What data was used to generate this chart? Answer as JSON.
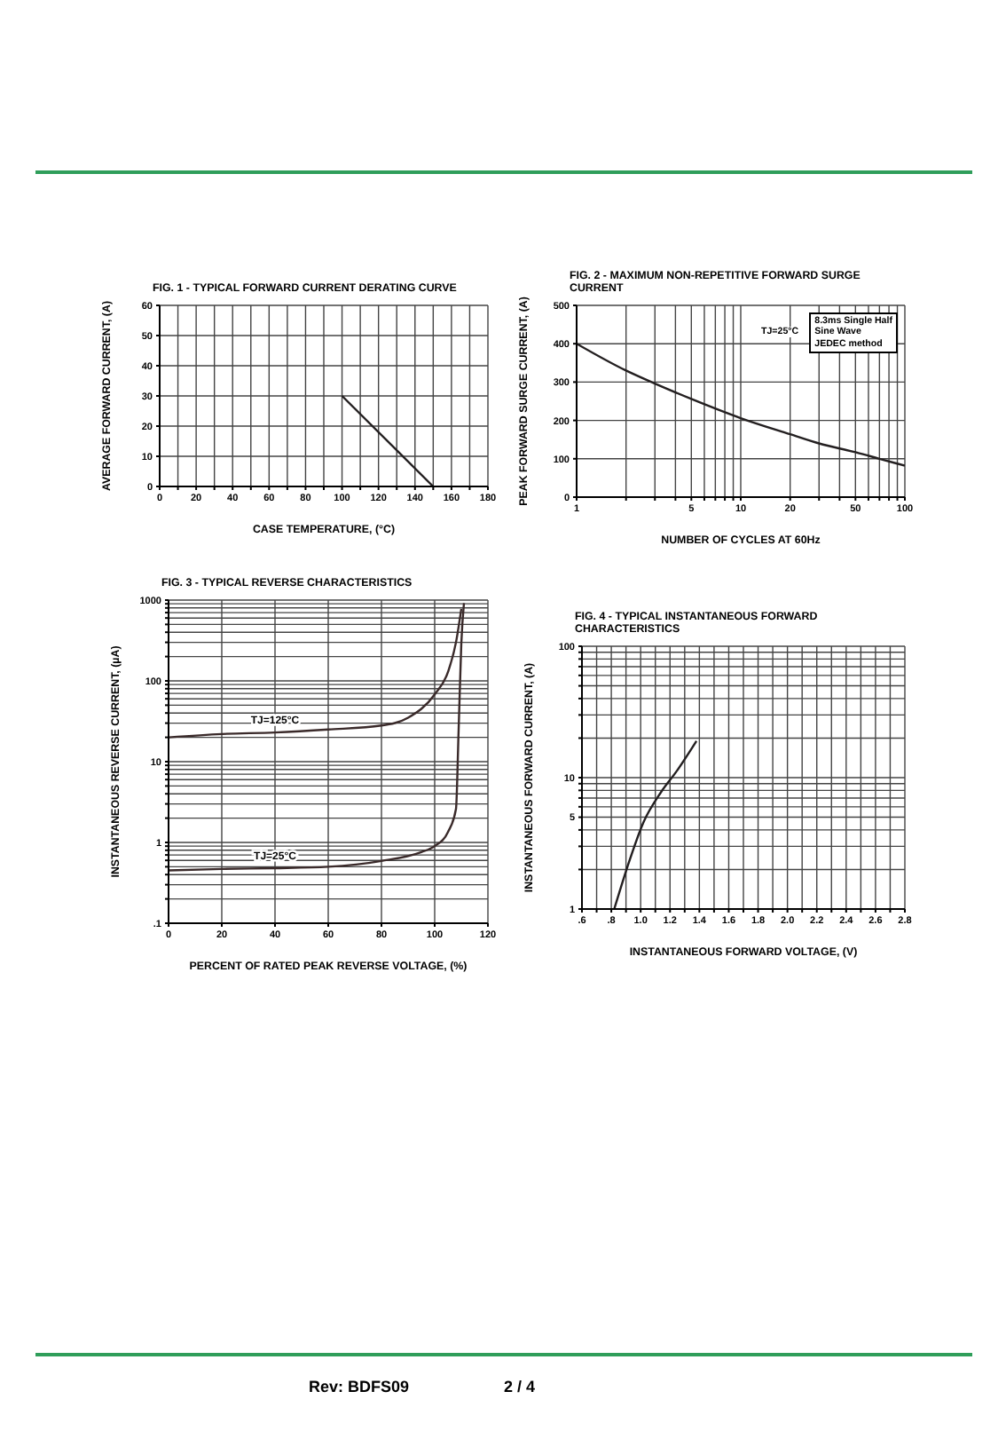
{
  "chart_data": [
    {
      "type": "line",
      "title": "FIG. 1 - TYPICAL FORWARD CURRENT DERATING CURVE",
      "xlabel": "CASE TEMPERATURE, (°C)",
      "ylabel": "AVERAGE FORWARD CURRENT, (A)",
      "grid": true,
      "xlim": [
        0,
        180
      ],
      "xticks": [
        0,
        {
          "value": 10,
          "label": null
        },
        20,
        {
          "value": 30,
          "label": null
        },
        40,
        {
          "value": 50,
          "label": null
        },
        60,
        {
          "value": 70,
          "label": null
        },
        80,
        {
          "value": 90,
          "label": null
        },
        100,
        {
          "value": 110,
          "label": null
        },
        120,
        {
          "value": 130,
          "label": null
        },
        140,
        {
          "value": 150,
          "label": null
        },
        160,
        {
          "value": 170,
          "label": null
        },
        180
      ],
      "ylim": [
        0,
        60
      ],
      "yticks": [
        0,
        10,
        20,
        30,
        40,
        50,
        60
      ],
      "series": [
        {
          "color": "#231f20",
          "x": [
            100,
            150
          ],
          "values": [
            30,
            0
          ]
        }
      ]
    },
    {
      "type": "line",
      "title": "FIG. 2 - MAXIMUM NON-REPETITIVE FORWARD SURGE CURRENT",
      "xlabel": "NUMBER OF CYCLES AT 60Hz",
      "ylabel": "PEAK FORWARD SURGE CURRENT, (A)",
      "grid": true,
      "log": "x",
      "annotations": [
        "TJ=25°C",
        "8.3ms Single Half\nSine Wave\nJEDEC method"
      ],
      "xlim": [
        1,
        100
      ],
      "xticks": [
        1,
        {
          "value": 2,
          "label": null
        },
        {
          "value": 3,
          "label": null
        },
        {
          "value": 4,
          "label": null
        },
        5,
        {
          "value": 6,
          "label": null
        },
        {
          "value": 7,
          "label": null
        },
        {
          "value": 8,
          "label": null
        },
        {
          "value": 9,
          "label": null
        },
        10,
        20,
        {
          "value": 30,
          "label": null
        },
        {
          "value": 40,
          "label": null
        },
        50,
        {
          "value": 60,
          "label": null
        },
        {
          "value": 70,
          "label": null
        },
        {
          "value": 80,
          "label": null
        },
        {
          "value": 90,
          "label": null
        },
        100
      ],
      "ylim": [
        0,
        500
      ],
      "yticks": [
        0,
        100,
        200,
        300,
        400,
        500
      ],
      "series": [
        {
          "color": "#231f20",
          "x": [
            1,
            2,
            3,
            5,
            10,
            20,
            30,
            50,
            70,
            100
          ],
          "values": [
            400,
            330,
            296,
            256,
            206,
            164,
            140,
            117,
            100,
            82
          ]
        }
      ]
    },
    {
      "type": "line",
      "title": "FIG. 3 - TYPICAL REVERSE CHARACTERISTICS",
      "xlabel": "PERCENT OF RATED PEAK REVERSE VOLTAGE, (%)",
      "ylabel": "INSTANTANEOUS REVERSE CURRENT, (µA)",
      "grid": true,
      "log": "y",
      "xlim": [
        0,
        120
      ],
      "xticks": [
        0,
        20,
        40,
        60,
        80,
        100,
        120
      ],
      "ylim": [
        0.1,
        1000
      ],
      "yticks": [
        {
          "value": 0.1,
          "label": ".1"
        },
        {
          "value": 0.2,
          "label": null
        },
        {
          "value": 0.3,
          "label": null
        },
        {
          "value": 0.4,
          "label": null
        },
        {
          "value": 0.5,
          "label": null
        },
        {
          "value": 0.6,
          "label": null
        },
        {
          "value": 0.7,
          "label": null
        },
        {
          "value": 0.8,
          "label": null
        },
        {
          "value": 0.9,
          "label": null
        },
        1,
        {
          "value": 2,
          "label": null
        },
        {
          "value": 3,
          "label": null
        },
        {
          "value": 4,
          "label": null
        },
        {
          "value": 5,
          "label": null
        },
        {
          "value": 6,
          "label": null
        },
        {
          "value": 7,
          "label": null
        },
        {
          "value": 8,
          "label": null
        },
        {
          "value": 9,
          "label": null
        },
        10,
        {
          "value": 20,
          "label": null
        },
        {
          "value": 30,
          "label": null
        },
        {
          "value": 40,
          "label": null
        },
        {
          "value": 50,
          "label": null
        },
        {
          "value": 60,
          "label": null
        },
        {
          "value": 70,
          "label": null
        },
        {
          "value": 80,
          "label": null
        },
        {
          "value": 90,
          "label": null
        },
        100,
        {
          "value": 200,
          "label": null
        },
        {
          "value": 300,
          "label": null
        },
        {
          "value": 400,
          "label": null
        },
        {
          "value": 500,
          "label": null
        },
        {
          "value": 600,
          "label": null
        },
        {
          "value": 700,
          "label": null
        },
        {
          "value": 800,
          "label": null
        },
        {
          "value": 900,
          "label": null
        },
        1000
      ],
      "series": [
        {
          "name": "TJ=125°C",
          "color": "#3a2a2a",
          "x": [
            0,
            20,
            40,
            60,
            80,
            90,
            100,
            105,
            108,
            110
          ],
          "values": [
            20,
            22,
            23,
            25,
            28,
            35,
            68,
            129,
            300,
            780
          ]
        },
        {
          "name": "TJ=25°C",
          "color": "#3a2a2a",
          "x": [
            0,
            20,
            40,
            60,
            80,
            95,
            100,
            105,
            108,
            109,
            110,
            111
          ],
          "values": [
            0.45,
            0.47,
            0.48,
            0.5,
            0.59,
            0.76,
            0.9,
            1.35,
            2.6,
            25,
            290,
            920
          ]
        }
      ]
    },
    {
      "type": "line",
      "title": "FIG. 4 - TYPICAL INSTANTANEOUS FORWARD CHARACTERISTICS",
      "xlabel": "INSTANTANEOUS FORWARD VOLTAGE, (V)",
      "ylabel": "INSTANTANEOUS FORWARD CURRENT, (A)",
      "grid": true,
      "log": "y",
      "xlim": [
        0.6,
        2.8
      ],
      "xticks": [
        {
          "value": 0.6,
          "label": ".6"
        },
        {
          "value": 0.7,
          "label": null
        },
        {
          "value": 0.8,
          "label": ".8"
        },
        {
          "value": 0.9,
          "label": null
        },
        {
          "value": 1.0,
          "label": "1.0"
        },
        {
          "value": 1.1,
          "label": null
        },
        {
          "value": 1.2,
          "label": "1.2"
        },
        {
          "value": 1.3,
          "label": null
        },
        {
          "value": 1.4,
          "label": "1.4"
        },
        {
          "value": 1.5,
          "label": null
        },
        {
          "value": 1.6,
          "label": "1.6"
        },
        {
          "value": 1.7,
          "label": null
        },
        {
          "value": 1.8,
          "label": "1.8"
        },
        {
          "value": 1.9,
          "label": null
        },
        {
          "value": 2.0,
          "label": "2.0"
        },
        {
          "value": 2.1,
          "label": null
        },
        {
          "value": 2.2,
          "label": "2.2"
        },
        {
          "value": 2.3,
          "label": null
        },
        {
          "value": 2.4,
          "label": "2.4"
        },
        {
          "value": 2.5,
          "label": null
        },
        {
          "value": 2.6,
          "label": "2.6"
        },
        {
          "value": 2.7,
          "label": null
        },
        {
          "value": 2.8,
          "label": "2.8"
        }
      ],
      "ylim": [
        1,
        100
      ],
      "yticks": [
        1,
        {
          "value": 2,
          "label": null
        },
        {
          "value": 3,
          "label": null
        },
        {
          "value": 4,
          "label": null
        },
        5,
        {
          "value": 6,
          "label": null
        },
        {
          "value": 7,
          "label": null
        },
        {
          "value": 8,
          "label": null
        },
        {
          "value": 9,
          "label": null
        },
        10,
        {
          "value": 20,
          "label": null
        },
        {
          "value": 30,
          "label": null
        },
        {
          "value": 40,
          "label": null
        },
        {
          "value": 50,
          "label": null
        },
        {
          "value": 60,
          "label": null
        },
        {
          "value": 70,
          "label": null
        },
        {
          "value": 80,
          "label": null
        },
        {
          "value": 90,
          "label": null
        },
        100
      ],
      "series": [
        {
          "color": "#231f20",
          "x": [
            0.82,
            0.91,
            1.02,
            1.14,
            1.25,
            1.38
          ],
          "values": [
            1,
            2.1,
            4.6,
            7.8,
            11.4,
            19
          ]
        }
      ]
    },
    {
      "type": "other",
      "annotations": [
        "Rev: BDFS09",
        "2 / 4"
      ]
    }
  ]
}
